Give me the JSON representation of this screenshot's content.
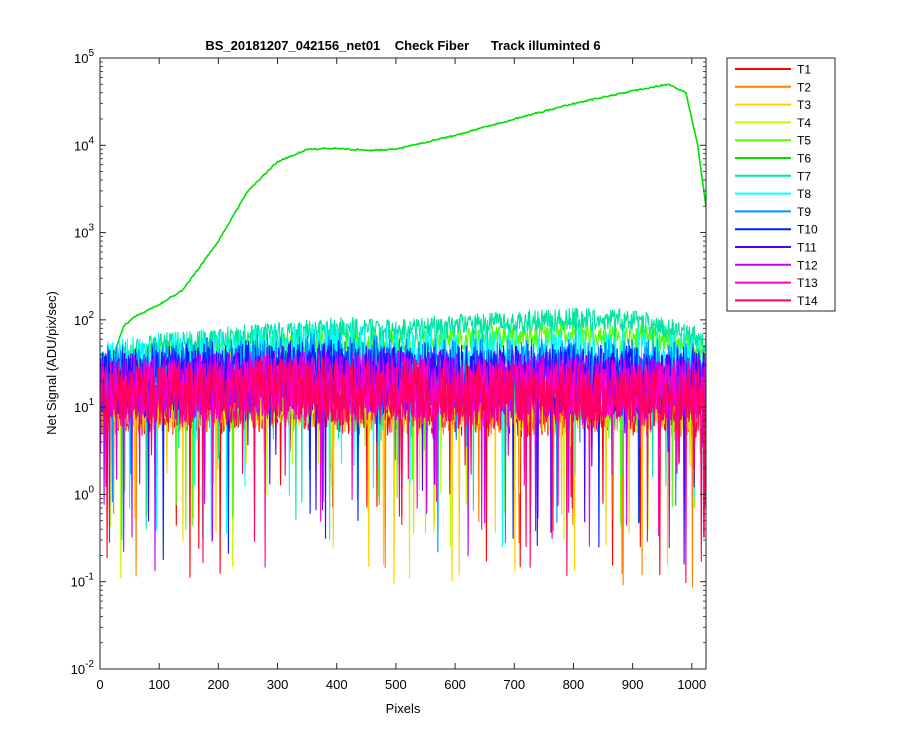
{
  "chart_data": {
    "type": "line",
    "title": "BS_20181207_042156_net01    Check Fiber      Track illuminted 6",
    "xlabel": "Pixels",
    "ylabel": "Net Signal (ADU/pix/sec)",
    "xscale": "linear",
    "yscale": "log",
    "xlim": [
      0,
      1024
    ],
    "ylim": [
      0.01,
      100000
    ],
    "xticks": [
      0,
      100,
      200,
      300,
      400,
      500,
      600,
      700,
      800,
      900,
      1000
    ],
    "xtick_labels": [
      "0",
      "100",
      "200",
      "300",
      "400",
      "500",
      "600",
      "700",
      "800",
      "900",
      "1000"
    ],
    "yticks": [
      0.01,
      0.1,
      1,
      10,
      100,
      1000,
      10000,
      100000
    ],
    "ytick_labels": [
      {
        "base": "10",
        "exp": "-2"
      },
      {
        "base": "10",
        "exp": "-1"
      },
      {
        "base": "10",
        "exp": "0"
      },
      {
        "base": "10",
        "exp": "1"
      },
      {
        "base": "10",
        "exp": "2"
      },
      {
        "base": "10",
        "exp": "3"
      },
      {
        "base": "10",
        "exp": "4"
      },
      {
        "base": "10",
        "exp": "5"
      }
    ],
    "legend_position": "outside-top-right",
    "grid": false,
    "series": [
      {
        "name": "T1",
        "color": "#ff0000",
        "x": [
          0,
          100,
          200,
          300,
          400,
          500,
          600,
          700,
          800,
          900,
          1024
        ],
        "y": [
          13,
          14,
          14,
          15,
          14,
          13,
          13,
          13,
          13,
          13,
          11
        ]
      },
      {
        "name": "T2",
        "color": "#ff7f00",
        "x": [
          0,
          100,
          200,
          300,
          400,
          500,
          600,
          700,
          800,
          900,
          1024
        ],
        "y": [
          14,
          15,
          15,
          16,
          15,
          14,
          14,
          14,
          14,
          14,
          12
        ]
      },
      {
        "name": "T3",
        "color": "#ffd000",
        "x": [
          0,
          100,
          200,
          300,
          400,
          500,
          600,
          700,
          800,
          900,
          1024
        ],
        "y": [
          15,
          15,
          16,
          17,
          16,
          15,
          15,
          15,
          15,
          15,
          13
        ]
      },
      {
        "name": "T4",
        "color": "#bfff00",
        "x": [
          0,
          100,
          200,
          300,
          400,
          500,
          600,
          700,
          800,
          900,
          1024
        ],
        "y": [
          16,
          17,
          18,
          19,
          18,
          17,
          17,
          17,
          17,
          16,
          14
        ]
      },
      {
        "name": "T5",
        "color": "#55ff00",
        "x": [
          0,
          20,
          40,
          100,
          200,
          300,
          400,
          500,
          600,
          700,
          800,
          900,
          1000,
          1024
        ],
        "y": [
          25,
          30,
          35,
          45,
          50,
          55,
          60,
          60,
          62,
          68,
          72,
          70,
          55,
          45
        ]
      },
      {
        "name": "T6",
        "color": "#00e000",
        "x": [
          0,
          20,
          40,
          60,
          100,
          140,
          200,
          250,
          300,
          350,
          400,
          450,
          500,
          600,
          700,
          800,
          900,
          960,
          990,
          1010,
          1024
        ],
        "y": [
          35,
          35,
          85,
          110,
          150,
          220,
          800,
          3000,
          6500,
          9000,
          9200,
          8700,
          9000,
          13000,
          20000,
          30000,
          42000,
          50000,
          40000,
          10000,
          2000
        ]
      },
      {
        "name": "T7",
        "color": "#00e5a0",
        "x": [
          0,
          20,
          40,
          100,
          200,
          300,
          400,
          500,
          600,
          700,
          800,
          900,
          1000,
          1024
        ],
        "y": [
          30,
          35,
          45,
          55,
          65,
          75,
          85,
          80,
          90,
          100,
          110,
          105,
          70,
          50
        ]
      },
      {
        "name": "T8",
        "color": "#00ffff",
        "x": [
          0,
          100,
          200,
          300,
          400,
          500,
          600,
          700,
          800,
          900,
          1000,
          1024
        ],
        "y": [
          30,
          35,
          40,
          45,
          45,
          40,
          40,
          40,
          40,
          40,
          35,
          30
        ]
      },
      {
        "name": "T9",
        "color": "#0090ff",
        "x": [
          0,
          100,
          200,
          300,
          400,
          500,
          600,
          700,
          800,
          900,
          1000,
          1024
        ],
        "y": [
          25,
          28,
          32,
          35,
          35,
          32,
          30,
          30,
          30,
          30,
          28,
          25
        ]
      },
      {
        "name": "T10",
        "color": "#0020ff",
        "x": [
          0,
          100,
          200,
          300,
          400,
          500,
          600,
          700,
          800,
          900,
          1000,
          1024
        ],
        "y": [
          22,
          25,
          28,
          30,
          30,
          28,
          26,
          26,
          26,
          25,
          24,
          22
        ]
      },
      {
        "name": "T11",
        "color": "#5000ff",
        "x": [
          0,
          100,
          200,
          300,
          400,
          500,
          600,
          700,
          800,
          900,
          1000,
          1024
        ],
        "y": [
          20,
          22,
          24,
          26,
          26,
          24,
          23,
          23,
          23,
          22,
          21,
          20
        ]
      },
      {
        "name": "T12",
        "color": "#c000ff",
        "x": [
          0,
          100,
          200,
          300,
          400,
          500,
          600,
          700,
          800,
          900,
          1000,
          1024
        ],
        "y": [
          18,
          20,
          22,
          23,
          23,
          22,
          21,
          21,
          21,
          20,
          19,
          18
        ]
      },
      {
        "name": "T13",
        "color": "#ff00c0",
        "x": [
          0,
          100,
          200,
          300,
          400,
          500,
          600,
          700,
          800,
          900,
          1000,
          1024
        ],
        "y": [
          16,
          18,
          19,
          20,
          20,
          19,
          18,
          18,
          18,
          18,
          17,
          16
        ]
      },
      {
        "name": "T14",
        "color": "#ff0060",
        "x": [
          0,
          100,
          200,
          300,
          400,
          500,
          600,
          700,
          800,
          900,
          1000,
          1024
        ],
        "y": [
          15,
          16,
          17,
          18,
          18,
          17,
          16,
          16,
          16,
          16,
          15,
          14
        ]
      }
    ]
  }
}
